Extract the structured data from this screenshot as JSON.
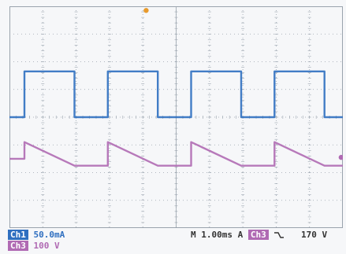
{
  "colors": {
    "ch1": "#2f6fc0",
    "ch3": "#b06ab3",
    "grid": "#9aa3ad",
    "background": "#f6f7f9",
    "trigger_marker": "#e89a2c"
  },
  "status": {
    "ch1_tag": "Ch1",
    "ch1_scale": "50.0mA",
    "ch3_tag": "Ch3",
    "ch3_scale": "100 V",
    "timebase": "M 1.00ms",
    "trigger_mode": "A",
    "trigger_source": "Ch3",
    "trigger_slope_icon": "falling-edge-icon",
    "trigger_level": "170 V"
  },
  "chart_data": {
    "type": "line",
    "xlabel": "",
    "ylabel": "",
    "grid": true,
    "x_divisions": 10,
    "y_divisions": 8,
    "x_units": "div",
    "y_units": "div",
    "xlim": [
      0,
      10
    ],
    "ylim": [
      0,
      8
    ],
    "series": [
      {
        "channel": "Ch1",
        "color": "#2f6fc0",
        "points": [
          [
            0,
            4.0
          ],
          [
            0.45,
            4.0
          ],
          [
            0.45,
            5.65
          ],
          [
            1.95,
            5.65
          ],
          [
            1.95,
            4.0
          ],
          [
            2.95,
            4.0
          ],
          [
            2.95,
            5.65
          ],
          [
            4.45,
            5.65
          ],
          [
            4.45,
            4.0
          ],
          [
            5.45,
            4.0
          ],
          [
            5.45,
            5.65
          ],
          [
            6.95,
            5.65
          ],
          [
            6.95,
            4.0
          ],
          [
            7.95,
            4.0
          ],
          [
            7.95,
            5.65
          ],
          [
            9.45,
            5.65
          ],
          [
            9.45,
            4.0
          ],
          [
            10,
            4.0
          ]
        ]
      },
      {
        "channel": "Ch3",
        "color": "#b06ab3",
        "points": [
          [
            0,
            2.5
          ],
          [
            0.45,
            2.5
          ],
          [
            0.45,
            3.1
          ],
          [
            1.95,
            2.25
          ],
          [
            2.95,
            2.25
          ],
          [
            2.95,
            3.1
          ],
          [
            4.45,
            2.25
          ],
          [
            5.45,
            2.25
          ],
          [
            5.45,
            3.1
          ],
          [
            6.95,
            2.25
          ],
          [
            7.95,
            2.25
          ],
          [
            7.95,
            3.1
          ],
          [
            9.45,
            2.25
          ],
          [
            10,
            2.25
          ]
        ]
      }
    ],
    "markers": [
      {
        "name": "trigger-position",
        "x": 4.1,
        "y": 7.85,
        "color": "#e89a2c"
      },
      {
        "name": "ch3-trigger-level",
        "x": 9.95,
        "y": 2.55,
        "color": "#b06ab3"
      }
    ]
  }
}
